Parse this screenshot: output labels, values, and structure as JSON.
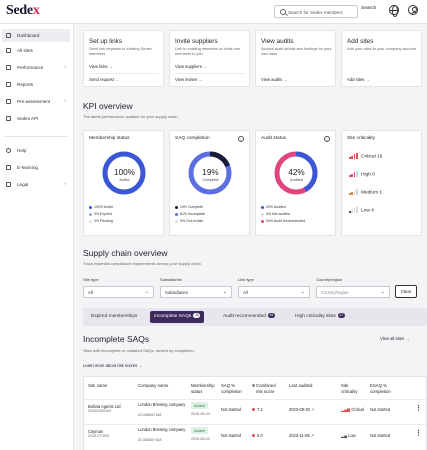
{
  "brand": {
    "name": "Sede",
    "name_accent": "x"
  },
  "header": {
    "search_placeholder": "Search for Sedex members",
    "search_button": "Search"
  },
  "sidebar": {
    "items": [
      {
        "label": "Dashboard",
        "icon": "dashboard-icon",
        "active": true
      },
      {
        "label": "All sites",
        "icon": "sites-icon"
      },
      {
        "label": "Performance",
        "icon": "performance-icon",
        "chevron": true
      },
      {
        "label": "Reports",
        "icon": "reports-icon"
      },
      {
        "label": "Pre-assessment",
        "icon": "pre-assessment-icon",
        "chevron": true
      },
      {
        "label": "Sedex API",
        "icon": "api-icon"
      }
    ],
    "bottom_items": [
      {
        "label": "Help",
        "icon": "help-icon"
      },
      {
        "label": "E-learning",
        "icon": "e-learning-icon"
      },
      {
        "label": "Legal",
        "icon": "legal-icon",
        "chevron": true
      }
    ]
  },
  "quick_cards": [
    {
      "title": "Set up links",
      "desc": "Send link requests to existing Sedex members",
      "link1": "View links",
      "link2": "Send request"
    },
    {
      "title": "Invite suppliers",
      "desc": "Link to existing members or invite non members to join",
      "link1": "View suppliers",
      "link2": "View invites"
    },
    {
      "title": "View audits",
      "desc": "Access audit details and findings for your own sites",
      "link1": "View audits",
      "link2": ""
    },
    {
      "title": "Add sites",
      "desc": "Add your sites to your company account",
      "link1": "Add sites",
      "link2": ""
    }
  ],
  "kpi": {
    "title": "KPI overview",
    "subtitle": "The latest performance updates for your supply chain",
    "membership": {
      "title": "Membership status",
      "percent": "100%",
      "label": "Active",
      "fraction": 1.0,
      "color": "#3c57d6",
      "legend": [
        "100% Active",
        "0% Expired",
        "0% Pending"
      ],
      "legend_colors": [
        "#3c57d6",
        "#9aa8ec",
        "#d8dbea"
      ]
    },
    "saq": {
      "title": "SAQ completion",
      "percent": "19%",
      "label": "Complete",
      "fraction": 0.19,
      "color": "#1c1c3a",
      "track": "#5b6fe0",
      "legend": [
        "19% Complete",
        "81% Incomplete",
        "0% Out of date"
      ],
      "legend_colors": [
        "#1c1c3a",
        "#5b6fe0",
        "#d8dbea"
      ]
    },
    "audit": {
      "title": "Audit status",
      "percent": "42%",
      "label": "Audited",
      "fraction": 0.42,
      "color": "#3c57d6",
      "track": "#e0457f",
      "legend": [
        "42% Audited",
        "4% Not audited",
        "54% Audit recommended"
      ],
      "legend_colors": [
        "#3c57d6",
        "#d8dbea",
        "#e0457f"
      ]
    },
    "criticality": {
      "title": "Site criticality",
      "rows": [
        {
          "label": "Critical",
          "count": "16",
          "level": 4,
          "color": "#d9534f"
        },
        {
          "label": "High",
          "count": "0",
          "level": 3,
          "color": "#e0457f"
        },
        {
          "label": "Medium",
          "count": "1",
          "level": 2,
          "color": "#e08a3f"
        },
        {
          "label": "Low",
          "count": "4",
          "level": 1,
          "color": "#555555"
        }
      ]
    }
  },
  "supply_chain": {
    "title": "Supply chain overview",
    "subtitle": "Track essential compliance requirements across your supply chain",
    "filters": [
      {
        "label": "Site type",
        "value": "All"
      },
      {
        "label": "Subsidiaries",
        "value": "Subsidiaries"
      },
      {
        "label": "Link type",
        "value": "All"
      },
      {
        "label": "Country/region",
        "value": "Country/region"
      }
    ],
    "clear": "Clear"
  },
  "tabs": [
    {
      "label": "Expired memberships",
      "count": "",
      "active": false
    },
    {
      "label": "Incomplete SAQs",
      "count": "26",
      "active": true
    },
    {
      "label": "Audit recommended",
      "count": "16",
      "active": false
    },
    {
      "label": "High criticality sites",
      "count": "17",
      "active": false
    }
  ],
  "incomplete": {
    "title": "Incomplete SAQs",
    "subtitle": "Sites with incomplete or outdated SAQs, ranked by completion.",
    "learn_more": "Learn more about risk scores",
    "view_all": "View all sites",
    "columns": [
      "Site name",
      "Company name",
      "Membership status",
      "SAQ % completion",
      "Combined risk score",
      "Last audited",
      "Site criticality",
      "ESAQ % completion"
    ],
    "rows": [
      {
        "site": "Bolivia Agents Ltd",
        "site_id": "ZS401405164",
        "company": "London Brewing company",
        "company_id": "ZC408657168",
        "status": "Active",
        "status_date": "2026-08-24",
        "saq": "Not started",
        "risk": "7.2",
        "risk_color": "#d9534f",
        "audited": "2023-09-20",
        "criticality": "Critical",
        "crit_color": "#d9534f",
        "esaq": "Not started"
      },
      {
        "site": "Cayman",
        "site_id": "ZS41277090",
        "company": "London Brewing company",
        "company_id": "ZC408657168",
        "status": "Active",
        "status_date": "2026-08-24",
        "saq": "Not started",
        "risk": "6.0",
        "risk_color": "#d9534f",
        "audited": "2023-11-08",
        "criticality": "Low",
        "crit_color": "#555555",
        "esaq": "Not started"
      }
    ]
  }
}
